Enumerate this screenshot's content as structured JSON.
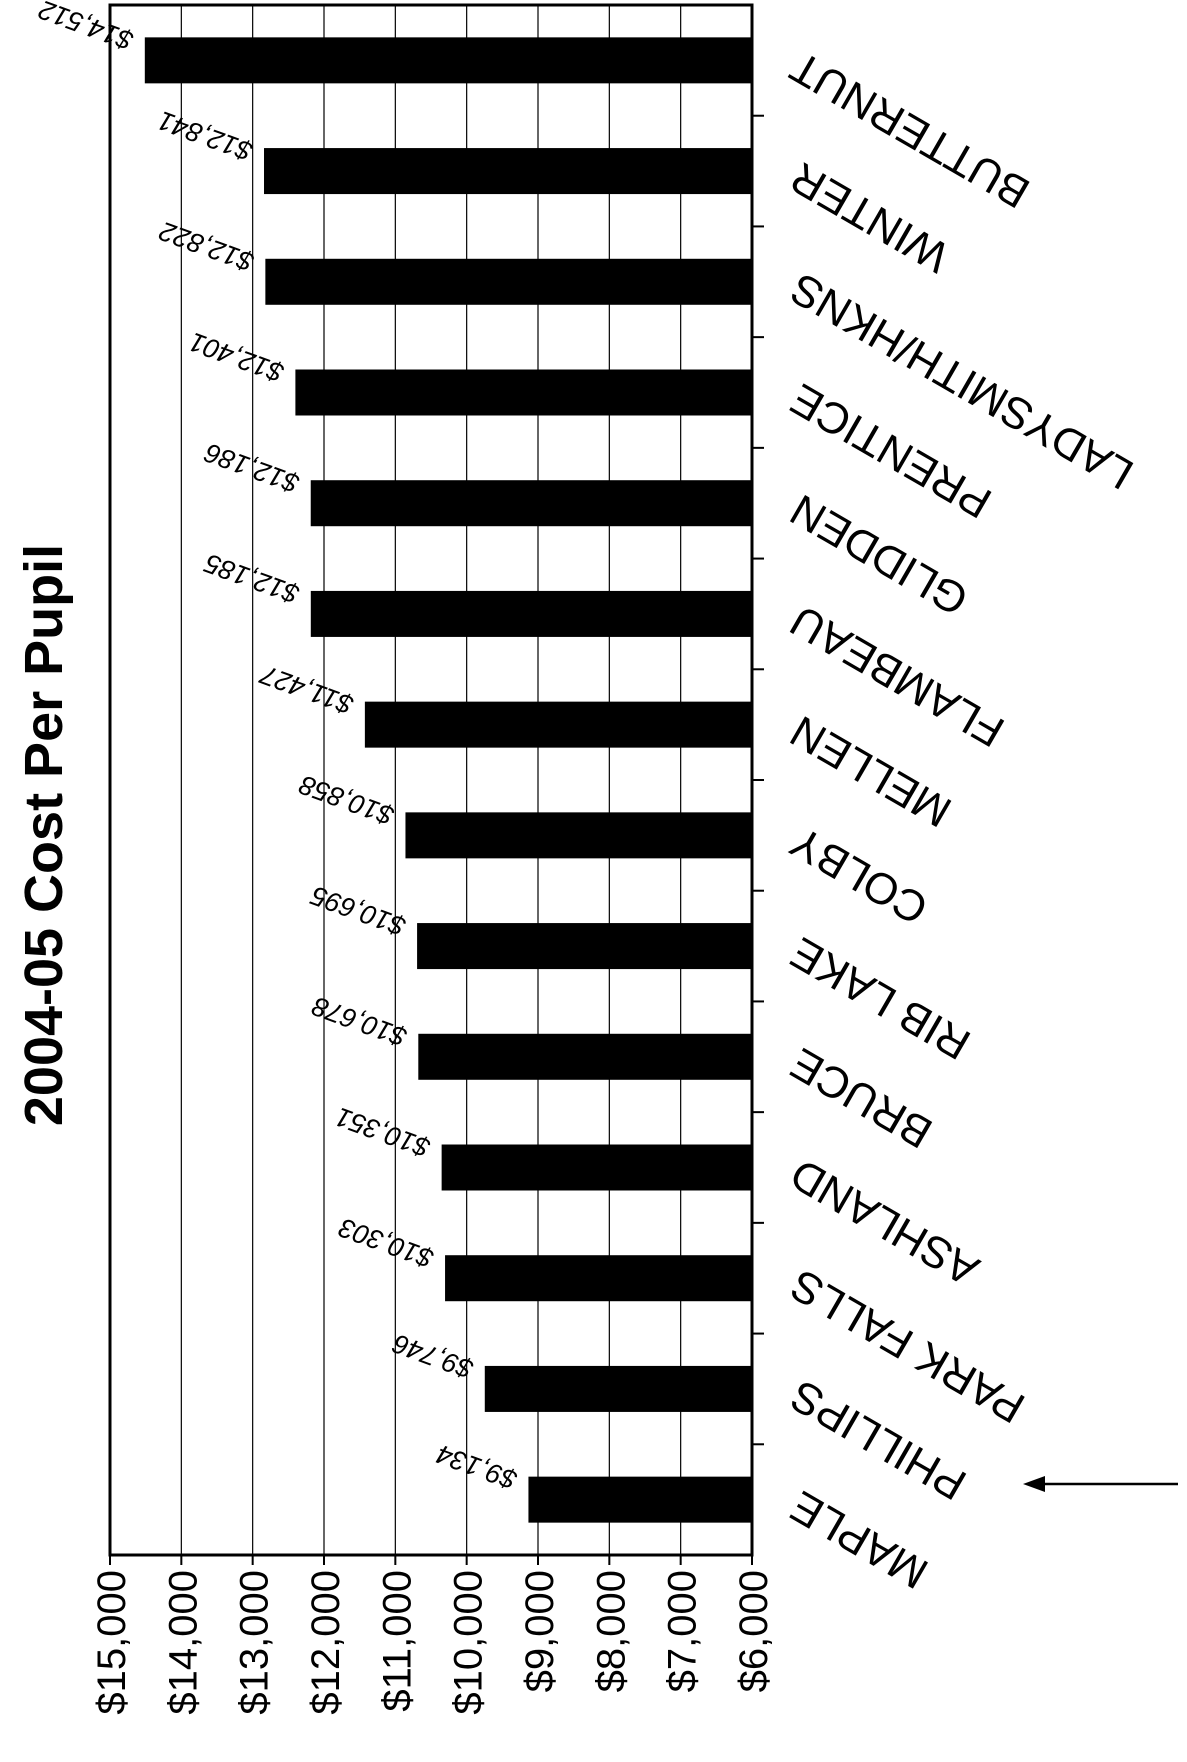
{
  "chart_data": {
    "type": "bar",
    "orientation": "horizontal",
    "title": "2004-05 Cost Per Pupil",
    "categories": [
      "BUTTERNUT",
      "WINTER",
      "LADYSMITH/HKNS",
      "PRENTICE",
      "GLIDDEN",
      "FLAMBEAU",
      "MELLEN",
      "COLBY",
      "RIB LAKE",
      "BRUCE",
      "ASHLAND",
      "PARK FALLS",
      "PHILLIPS",
      "MAPLE"
    ],
    "values": [
      14512,
      12841,
      12822,
      12401,
      12186,
      12185,
      11427,
      10858,
      10695,
      10678,
      10351,
      10303,
      9746,
      9134
    ],
    "value_labels": [
      "$14,512",
      "$12,841",
      "$12,822",
      "$12,401",
      "$12,186",
      "$12,185",
      "$11,427",
      "$10,858",
      "$10,695",
      "$10,678",
      "$10,351",
      "$10,303",
      "$9,746",
      "$9,134"
    ],
    "tick_values": [
      15000,
      14000,
      13000,
      12000,
      11000,
      10000,
      9000,
      8000,
      7000,
      6000
    ],
    "tick_labels": [
      "$15,000",
      "$14,000",
      "$13,000",
      "$12,000",
      "$11,000",
      "$10,000",
      "$9,000",
      "$8,000",
      "$7,000",
      "$6,000"
    ],
    "xlim": [
      6000,
      15000
    ],
    "grid": true,
    "highlighted_category": "PHILLIPS",
    "image_rotation_deg": 180,
    "colors": {
      "bar": "#000000",
      "grid": "#000000",
      "background": "#ffffff"
    }
  }
}
